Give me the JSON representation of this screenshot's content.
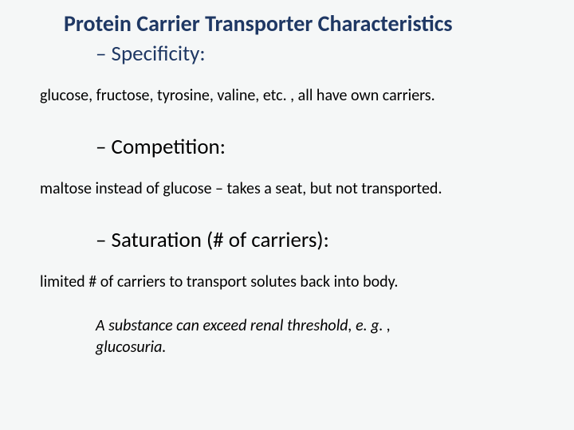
{
  "slide": {
    "title": "Protein Carrier Transporter Characteristics",
    "subtitle1": "– Specificity:",
    "body1": "glucose, fructose, tyrosine, valine, etc. , all have own carriers.",
    "subtitle2": "– Competition:",
    "body2": "maltose instead of glucose – takes a seat, but not transported.",
    "subtitle3": "– Saturation (# of carriers):",
    "body3": "limited # of carriers to transport solutes back into body.",
    "note": "A substance can exceed renal threshold, e. g. , glucosuria.",
    "colors": {
      "background": "#f5f7f7",
      "title_color": "#1f3864",
      "body_color": "#000000"
    },
    "typography": {
      "title_fontsize": 28,
      "subtitle_fontsize": 27,
      "body_fontsize": 20,
      "font_family": "Calibri"
    }
  }
}
